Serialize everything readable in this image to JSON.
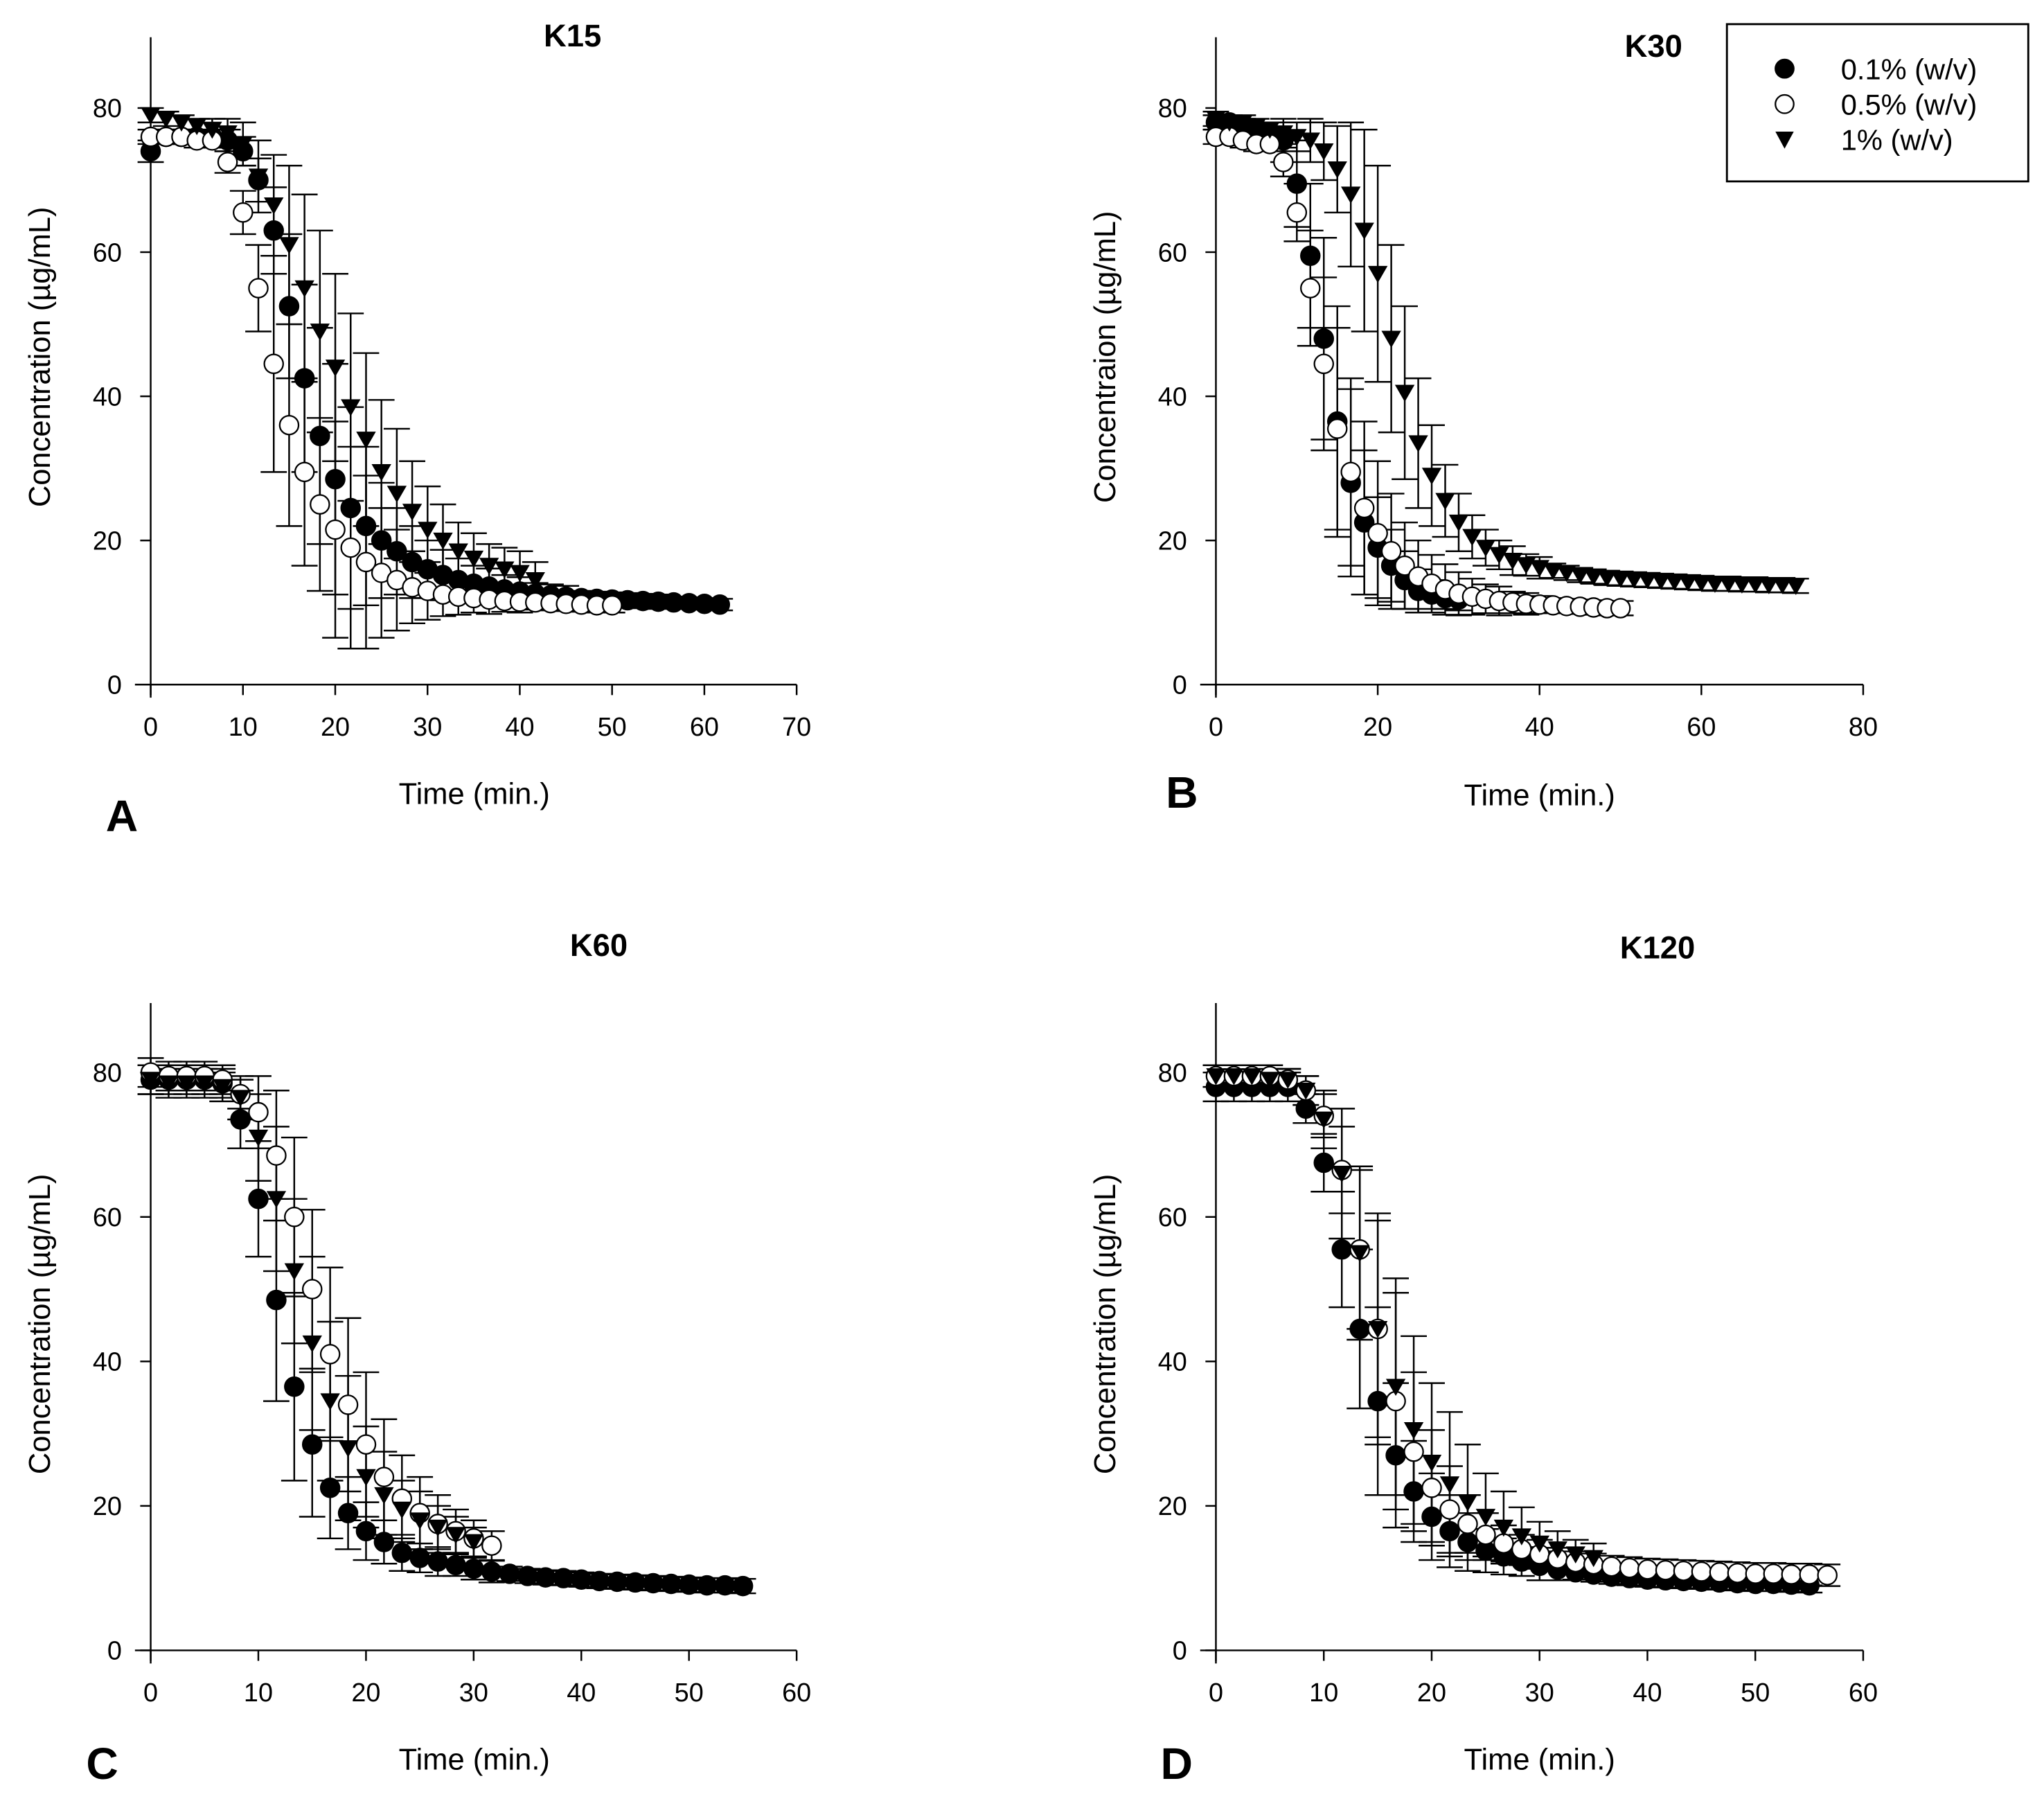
{
  "legend": {
    "entries": [
      "0.1% (w/v)",
      "0.5% (w/v)",
      "1% (w/v)"
    ],
    "placement": "top-right of panel B"
  },
  "chart_data": [
    {
      "type": "scatter",
      "panel_label": "A",
      "title": "K15",
      "xlabel": "Time (min.)",
      "ylabel": "Concentration (µg/mL)",
      "xlim": [
        0,
        70
      ],
      "ylim": [
        0,
        80
      ],
      "xticks": [
        "0",
        "10",
        "20",
        "30",
        "40",
        "50",
        "60",
        "70"
      ],
      "yticks": [
        "0",
        "20",
        "40",
        "60",
        "80"
      ],
      "x_interval_min": 1.667,
      "series": [
        {
          "name": "0.1% (w/v)",
          "marker": "filled-circle",
          "y": [
            74,
            76,
            76,
            76,
            76,
            75.5,
            74,
            70,
            63,
            52.5,
            42.5,
            34.5,
            28.5,
            24.5,
            22,
            20,
            18.5,
            17,
            16,
            15.2,
            14.5,
            14,
            13.6,
            13.2,
            12.9,
            12.6,
            12.4,
            12.2,
            12,
            11.9,
            11.8,
            11.7,
            11.6,
            11.5,
            11.4,
            11.3,
            11.2,
            11.1
          ],
          "err": [
            1.5,
            1,
            1,
            1,
            1,
            1.5,
            2,
            3,
            6,
            10,
            13,
            15,
            16,
            14,
            11,
            8,
            6,
            5,
            4,
            3.5,
            3,
            2.5,
            2.5,
            2,
            2,
            1.5,
            1.5,
            1.5,
            1,
            1,
            1,
            1,
            1,
            1,
            0.8,
            0.8,
            0.8,
            0.8
          ]
        },
        {
          "name": "0.5% (w/v)",
          "marker": "open-circle",
          "y": [
            76,
            76,
            76,
            75.5,
            75.5,
            72.5,
            65.5,
            55,
            44.5,
            36,
            29.5,
            25,
            21.5,
            19,
            17,
            15.5,
            14.5,
            13.5,
            13,
            12.5,
            12.2,
            12,
            11.8,
            11.6,
            11.5,
            11.4,
            11.3,
            11.2,
            11.1,
            11,
            11
          ],
          "err": [
            1,
            1,
            1,
            1,
            1,
            1.5,
            3,
            6,
            15,
            14,
            13,
            12,
            15,
            14,
            12,
            9,
            7,
            5,
            4,
            3,
            2.5,
            2,
            2,
            1.5,
            1.5,
            1,
            1,
            1,
            1,
            1,
            1
          ]
        },
        {
          "name": "1% (w/v)",
          "marker": "filled-triangle-down",
          "y": [
            79,
            78.5,
            78,
            77.5,
            77,
            76.5,
            75,
            70.5,
            66.5,
            61,
            55,
            49,
            44,
            38.5,
            34,
            29.5,
            26.5,
            24,
            21.5,
            20,
            18.5,
            17.5,
            16.5,
            16,
            15.5,
            14.5
          ],
          "err": [
            1,
            1,
            1,
            1,
            1.5,
            2,
            3,
            5,
            7,
            11,
            13,
            14,
            13,
            13,
            12,
            10,
            9,
            7,
            6,
            5,
            4,
            3.5,
            3,
            3,
            3,
            2.5
          ]
        }
      ]
    },
    {
      "type": "scatter",
      "panel_label": "B",
      "title": "K30",
      "xlabel": "Time (min.)",
      "ylabel": "Concentraion (µg/mL)",
      "xlim": [
        0,
        80
      ],
      "ylim": [
        0,
        80
      ],
      "xticks": [
        "0",
        "20",
        "40",
        "60",
        "80"
      ],
      "yticks": [
        "0",
        "20",
        "40",
        "60",
        "80"
      ],
      "x_interval_min": 1.667,
      "series": [
        {
          "name": "0.1% (w/v)",
          "marker": "filled-circle",
          "y": [
            78,
            78,
            77.5,
            77,
            76.5,
            75.5,
            69.5,
            59.5,
            48,
            36.5,
            28,
            22.5,
            19,
            16.5,
            14.5,
            13,
            12.5,
            12,
            11.8
          ],
          "err": [
            1,
            1,
            1,
            1,
            1.5,
            3,
            6,
            10,
            14,
            16,
            13,
            10,
            7,
            5,
            4,
            3,
            2,
            1.5,
            1.5
          ]
        },
        {
          "name": "0.5% (w/v)",
          "marker": "open-circle",
          "y": [
            76,
            76,
            75.5,
            75,
            75,
            72.5,
            65.5,
            55,
            44.5,
            35.5,
            29.5,
            24.5,
            21,
            18.5,
            16.5,
            15,
            14,
            13.2,
            12.6,
            12.2,
            11.9,
            11.6,
            11.4,
            11.2,
            11.1,
            11,
            10.9,
            10.8,
            10.7,
            10.6,
            10.6
          ],
          "err": [
            1,
            1,
            1,
            1,
            1,
            2,
            4,
            8,
            12,
            14,
            13,
            12,
            10,
            8,
            6,
            5,
            4,
            3.5,
            3,
            2.5,
            2,
            2,
            1.5,
            1.5,
            1.2,
            1,
            1,
            1,
            1,
            1,
            1
          ]
        },
        {
          "name": "1% (w/v)",
          "marker": "filled-triangle-down",
          "y": [
            78.5,
            78,
            78,
            77.5,
            77,
            76.5,
            76,
            75.5,
            74,
            71.5,
            68,
            63,
            57,
            48,
            40.5,
            33.5,
            29,
            25.5,
            22.5,
            20.5,
            19,
            18,
            17.2,
            16.6,
            16.2,
            15.8,
            15.5,
            15.2,
            15,
            14.8,
            14.7,
            14.6,
            14.5,
            14.4,
            14.3,
            14.2,
            14.1,
            14,
            14,
            13.9,
            13.9,
            13.8,
            13.8,
            13.7
          ],
          "err": [
            1,
            1,
            1,
            1,
            1,
            1.5,
            2,
            3,
            4,
            6,
            10,
            14,
            15,
            13,
            12,
            9,
            7,
            5,
            4,
            3,
            2.5,
            2,
            2,
            1.5,
            1.5,
            1,
            1,
            1,
            1,
            1,
            1,
            1,
            1,
            1,
            1,
            1,
            1,
            1,
            1,
            1,
            1,
            1,
            1,
            1
          ]
        }
      ]
    },
    {
      "type": "scatter",
      "panel_label": "C",
      "title": "K60",
      "xlabel": "Time (min.)",
      "ylabel": "Concentration (µg/mL)",
      "xlim": [
        0,
        60
      ],
      "ylim": [
        0,
        80
      ],
      "xticks": [
        "0",
        "10",
        "20",
        "30",
        "40",
        "50",
        "60"
      ],
      "yticks": [
        "0",
        "20",
        "40",
        "60",
        "80"
      ],
      "x_interval_min": 1.667,
      "series": [
        {
          "name": "0.1% (w/v)",
          "marker": "filled-circle",
          "y": [
            79,
            79,
            79,
            79,
            78.5,
            73.5,
            62.5,
            48.5,
            36.5,
            28.5,
            22.5,
            19,
            16.5,
            15,
            13.5,
            12.8,
            12.3,
            11.8,
            11.3,
            10.9,
            10.6,
            10.3,
            10.1,
            10,
            9.8,
            9.6,
            9.5,
            9.4,
            9.3,
            9.2,
            9.1,
            9,
            9,
            8.9
          ],
          "err": [
            2,
            2,
            2,
            2,
            2,
            4,
            8,
            14,
            13,
            10,
            7,
            5,
            4,
            3,
            2.5,
            2,
            2,
            1.5,
            1.5,
            1.5,
            1,
            1,
            1,
            1,
            1,
            1,
            1,
            1,
            1,
            1,
            1,
            1,
            1,
            1
          ]
        },
        {
          "name": "0.5% (w/v)",
          "marker": "open-circle",
          "y": [
            80,
            79.5,
            79.5,
            79.5,
            79,
            77,
            74.5,
            68.5,
            60,
            50,
            41,
            34,
            28.5,
            24,
            21,
            19,
            17.5,
            16.5,
            15.5,
            14.5
          ],
          "err": [
            2,
            2,
            2,
            2,
            2,
            2,
            5,
            9,
            11,
            11,
            12,
            12,
            10,
            8,
            6,
            5,
            4,
            3,
            2.5,
            2
          ]
        },
        {
          "name": "1% (w/v)",
          "marker": "filled-triangle-down",
          "y": [
            79,
            78.5,
            78.5,
            78.5,
            78,
            76.5,
            71,
            62.5,
            52.5,
            42.5,
            34.5,
            28,
            24,
            21.5,
            19.5,
            18,
            17,
            16,
            15
          ],
          "err": [
            2,
            2,
            2,
            2,
            2,
            3,
            6,
            10,
            10,
            12,
            11,
            10,
            7,
            6,
            4,
            4,
            3,
            2.5,
            2
          ]
        }
      ]
    },
    {
      "type": "scatter",
      "panel_label": "D",
      "title": "K120",
      "xlabel": "Time (min.)",
      "ylabel": "Concentration (µg/mL)",
      "xlim": [
        0,
        60
      ],
      "ylim": [
        0,
        80
      ],
      "xticks": [
        "0",
        "10",
        "20",
        "30",
        "40",
        "50",
        "60"
      ],
      "yticks": [
        "0",
        "20",
        "40",
        "60",
        "80"
      ],
      "x_interval_min": 1.667,
      "series": [
        {
          "name": "0.1% (w/v)",
          "marker": "filled-circle",
          "y": [
            78,
            78,
            78,
            78,
            78,
            75,
            67.5,
            55.5,
            44.5,
            34.5,
            27,
            22,
            18.5,
            16.5,
            15,
            13.8,
            13,
            12.3,
            11.7,
            11.2,
            10.8,
            10.5,
            10.2,
            10,
            9.8,
            9.7,
            9.6,
            9.5,
            9.4,
            9.3,
            9.2,
            9.2,
            9.1,
            9
          ],
          "err": [
            2,
            2,
            2,
            2,
            2,
            2,
            4,
            8,
            11,
            13,
            10,
            7,
            6,
            5,
            4,
            3,
            2.5,
            2,
            2,
            1.5,
            1,
            1,
            1,
            1,
            1,
            1,
            1,
            1,
            1,
            1,
            1,
            1,
            1,
            1
          ]
        },
        {
          "name": "0.5% (w/v)",
          "marker": "open-circle",
          "y": [
            79.5,
            79.5,
            79.5,
            79.5,
            79,
            77.5,
            74,
            66.5,
            55.5,
            44.5,
            34.5,
            27.5,
            22.5,
            19.5,
            17.5,
            16,
            14.8,
            14,
            13.3,
            12.7,
            12.2,
            11.9,
            11.6,
            11.4,
            11.2,
            11.1,
            11,
            10.9,
            10.8,
            10.7,
            10.6,
            10.6,
            10.5,
            10.5,
            10.4
          ],
          "err": [
            1.5,
            1.5,
            1.5,
            1.5,
            1.5,
            2,
            3,
            6,
            11,
            15,
            15,
            11,
            8,
            6,
            4,
            3,
            2.5,
            2,
            2,
            1.5,
            1.5,
            1.5,
            1.5,
            1.5,
            1.5,
            1.5,
            1.5,
            1.5,
            1.5,
            1.5,
            1.5,
            1.5,
            1.5,
            1.5,
            1.5
          ]
        },
        {
          "name": "1% (w/v)",
          "marker": "filled-triangle-down",
          "y": [
            79.5,
            79.5,
            79.5,
            79,
            79,
            77.5,
            73.5,
            66,
            55,
            44.5,
            36.5,
            30.5,
            26,
            23,
            20.5,
            18.5,
            17,
            15.8,
            14.8,
            14,
            13.3,
            12.8
          ],
          "err": [
            1.5,
            1.5,
            1.5,
            1.5,
            1.5,
            2,
            4,
            9,
            12,
            16,
            15,
            13,
            11,
            10,
            8,
            6,
            5,
            4,
            3,
            2.5,
            2,
            2
          ]
        }
      ]
    }
  ]
}
